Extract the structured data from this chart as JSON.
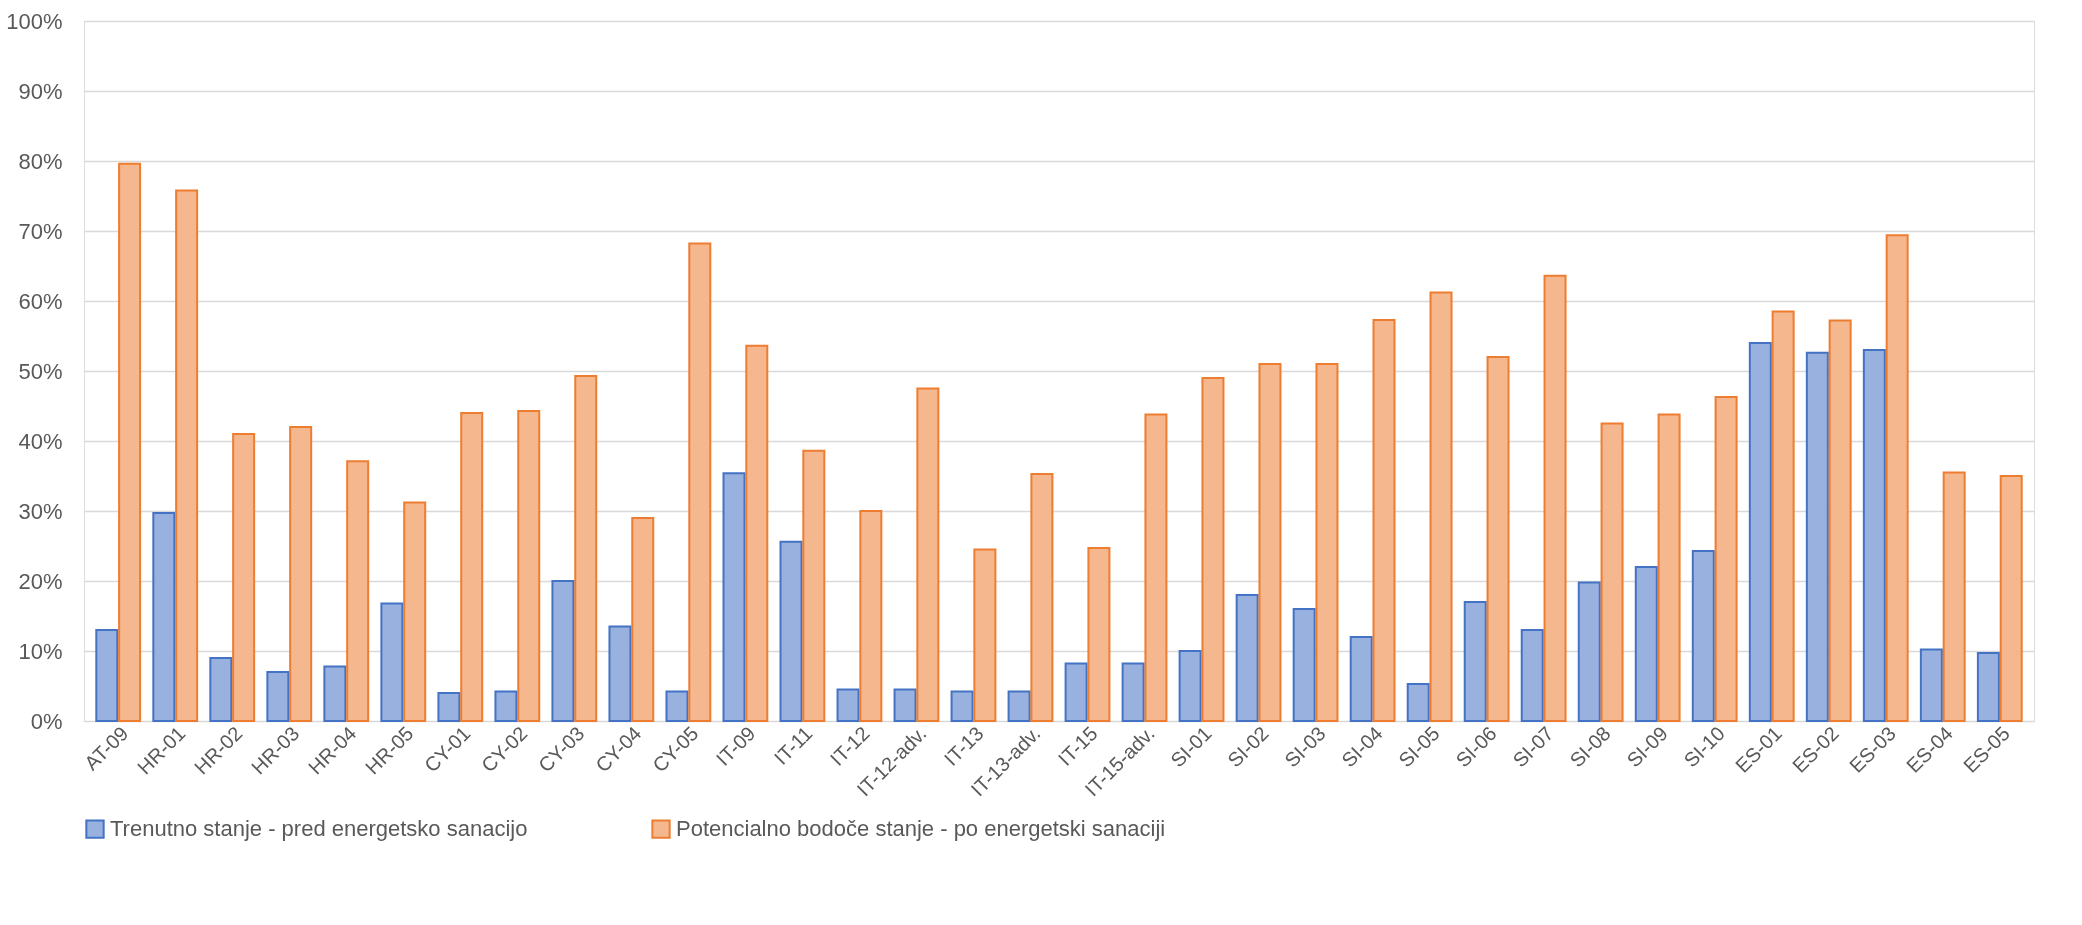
{
  "chart_data": {
    "type": "bar",
    "categories": [
      "AT-09",
      "HR-01",
      "HR-02",
      "HR-03",
      "HR-04",
      "HR-05",
      "CY-01",
      "CY-02",
      "CY-03",
      "CY-04",
      "CY-05",
      "IT-09",
      "IT-11",
      "IT-12",
      "IT-12-adv.",
      "IT-13",
      "IT-13-adv.",
      "IT-15",
      "IT-15-adv.",
      "SI-01",
      "SI-02",
      "SI-03",
      "SI-04",
      "SI-05",
      "SI-06",
      "SI-07",
      "SI-08",
      "SI-09",
      "SI-10",
      "ES-01",
      "ES-02",
      "ES-03",
      "ES-04",
      "ES-05"
    ],
    "series": [
      {
        "name": "Trenutno stanje - pred energetsko sanacijo",
        "color": "#4472c4",
        "values": [
          13,
          29.7,
          9,
          7,
          7.8,
          16.8,
          4,
          4.2,
          20,
          13.5,
          4.2,
          35.4,
          25.6,
          4.5,
          4.5,
          4.2,
          4.2,
          8.2,
          8.2,
          10,
          18,
          16,
          12,
          5.3,
          17,
          13,
          19.8,
          22,
          24.3,
          54,
          52.6,
          53,
          10.2,
          9.7
        ]
      },
      {
        "name": "Potencialno bodoče stanje - po energetski sanaciji",
        "color": "#ed7d31",
        "values": [
          79.6,
          75.8,
          41,
          42,
          37.1,
          31.2,
          44,
          44.3,
          49.3,
          29,
          68.2,
          53.6,
          38.6,
          30,
          47.5,
          24.5,
          35.3,
          24.7,
          43.8,
          49,
          51,
          51,
          57.3,
          61.2,
          52,
          63.6,
          42.5,
          43.8,
          46.3,
          58.5,
          57.2,
          69.4,
          35.5,
          35
        ]
      }
    ],
    "ylim": [
      0,
      100
    ],
    "yticks": [
      {
        "value": 0,
        "label": "0%"
      },
      {
        "value": 10,
        "label": "10%"
      },
      {
        "value": 20,
        "label": "20%"
      },
      {
        "value": 30,
        "label": "30%"
      },
      {
        "value": 40,
        "label": "40%"
      },
      {
        "value": 50,
        "label": "50%"
      },
      {
        "value": 60,
        "label": "60%"
      },
      {
        "value": 70,
        "label": "70%"
      },
      {
        "value": 80,
        "label": "80%"
      },
      {
        "value": 90,
        "label": "90%"
      },
      {
        "value": 100,
        "label": "100%"
      }
    ],
    "grid": "y",
    "legend": "bottom"
  }
}
